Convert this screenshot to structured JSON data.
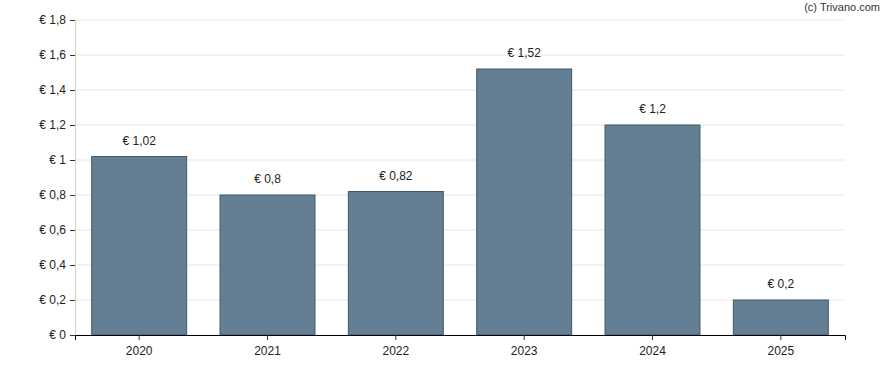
{
  "chart_data": {
    "type": "bar",
    "annotation": "(c) Trivano.com",
    "categories": [
      "2020",
      "2021",
      "2022",
      "2023",
      "2024",
      "2025"
    ],
    "values": [
      1.02,
      0.8,
      0.82,
      1.52,
      1.2,
      0.2
    ],
    "value_labels": [
      "€ 1,02",
      "€ 0,8",
      "€ 0,82",
      "€ 1,52",
      "€ 1,2",
      "€ 0,2"
    ],
    "data_labels": true,
    "color": "#647f93",
    "ylim": [
      0,
      1.8
    ],
    "yticks": [
      {
        "value": 0,
        "label": "€ 0"
      },
      {
        "value": 0.2,
        "label": "€ 0,2"
      },
      {
        "value": 0.4,
        "label": "€ 0,4"
      },
      {
        "value": 0.6,
        "label": "€ 0,6"
      },
      {
        "value": 0.8,
        "label": "€ 0,8"
      },
      {
        "value": 1,
        "label": "€ 1"
      },
      {
        "value": 1.2,
        "label": "€ 1,2"
      },
      {
        "value": 1.4,
        "label": "€ 1,4"
      },
      {
        "value": 1.6,
        "label": "€ 1,6"
      },
      {
        "value": 1.8,
        "label": "€ 1,8"
      }
    ],
    "grid": true
  }
}
